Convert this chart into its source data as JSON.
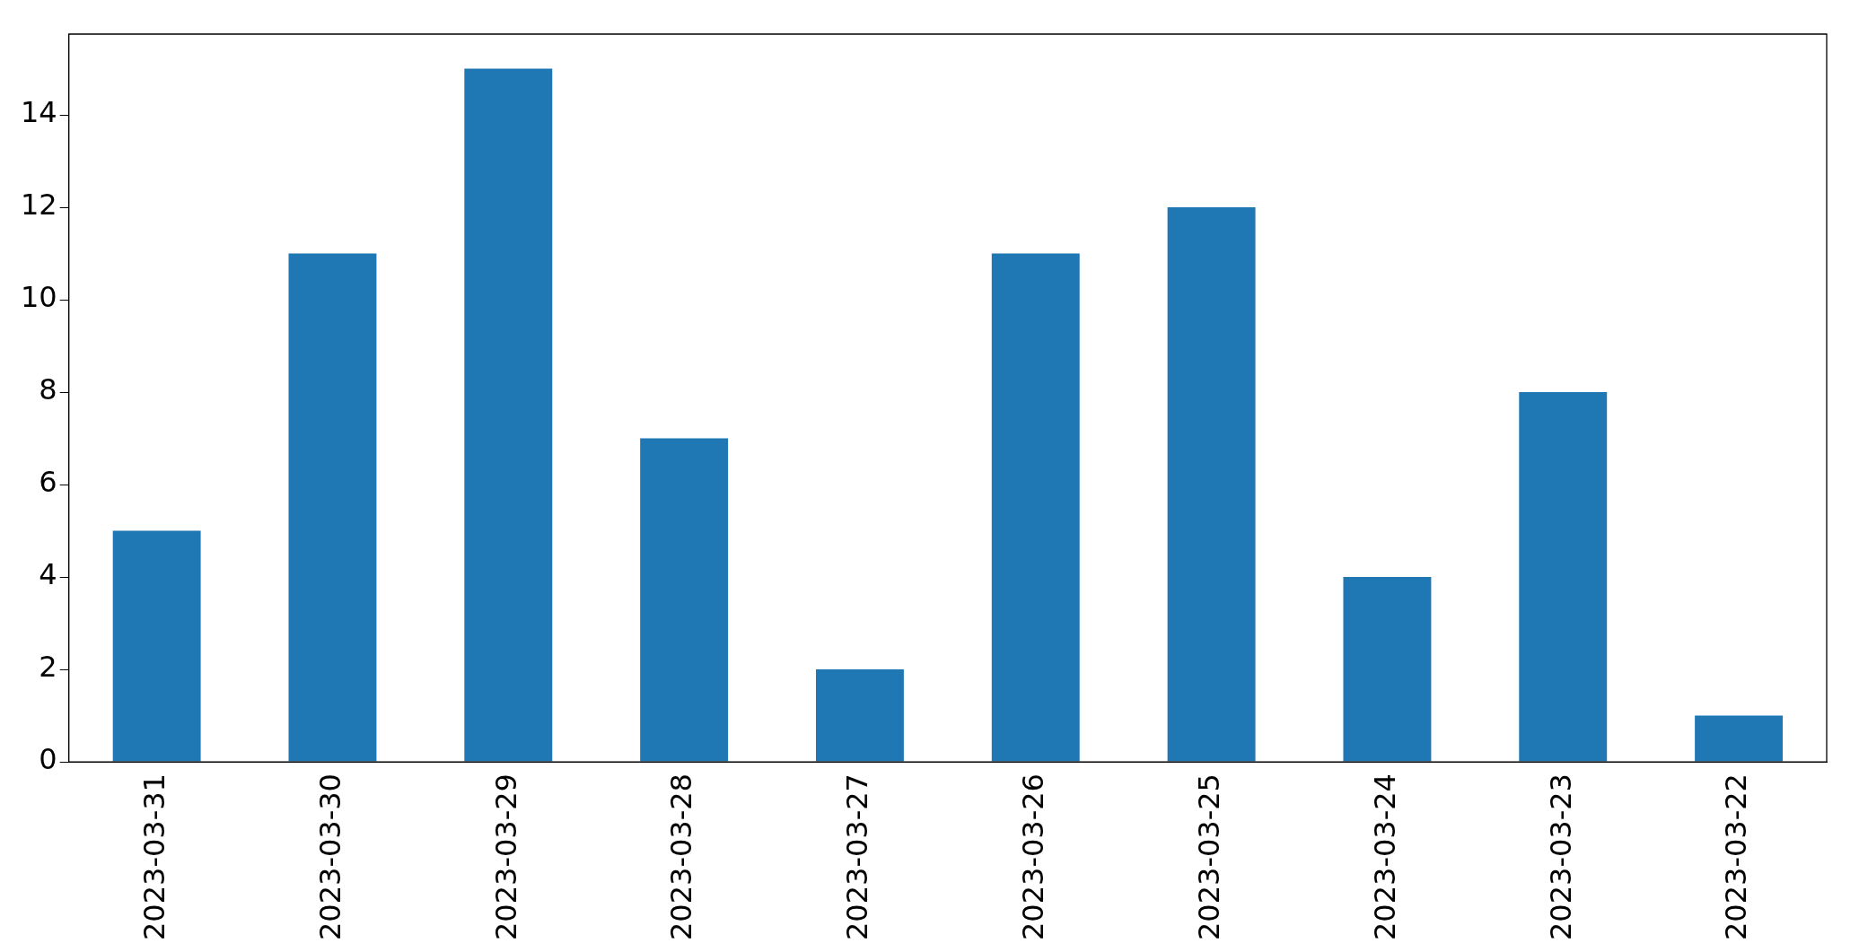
{
  "chart_data": {
    "type": "bar",
    "categories": [
      "2023-03-31",
      "2023-03-30",
      "2023-03-29",
      "2023-03-28",
      "2023-03-27",
      "2023-03-26",
      "2023-03-25",
      "2023-03-24",
      "2023-03-23",
      "2023-03-22"
    ],
    "values": [
      5,
      11,
      15,
      7,
      2,
      11,
      12,
      4,
      8,
      1
    ],
    "color": "#1f77b4",
    "ylim": [
      0,
      15.75
    ],
    "yticks": [
      0,
      2,
      4,
      6,
      8,
      10,
      12,
      14
    ],
    "grid": false,
    "legend": false
  }
}
